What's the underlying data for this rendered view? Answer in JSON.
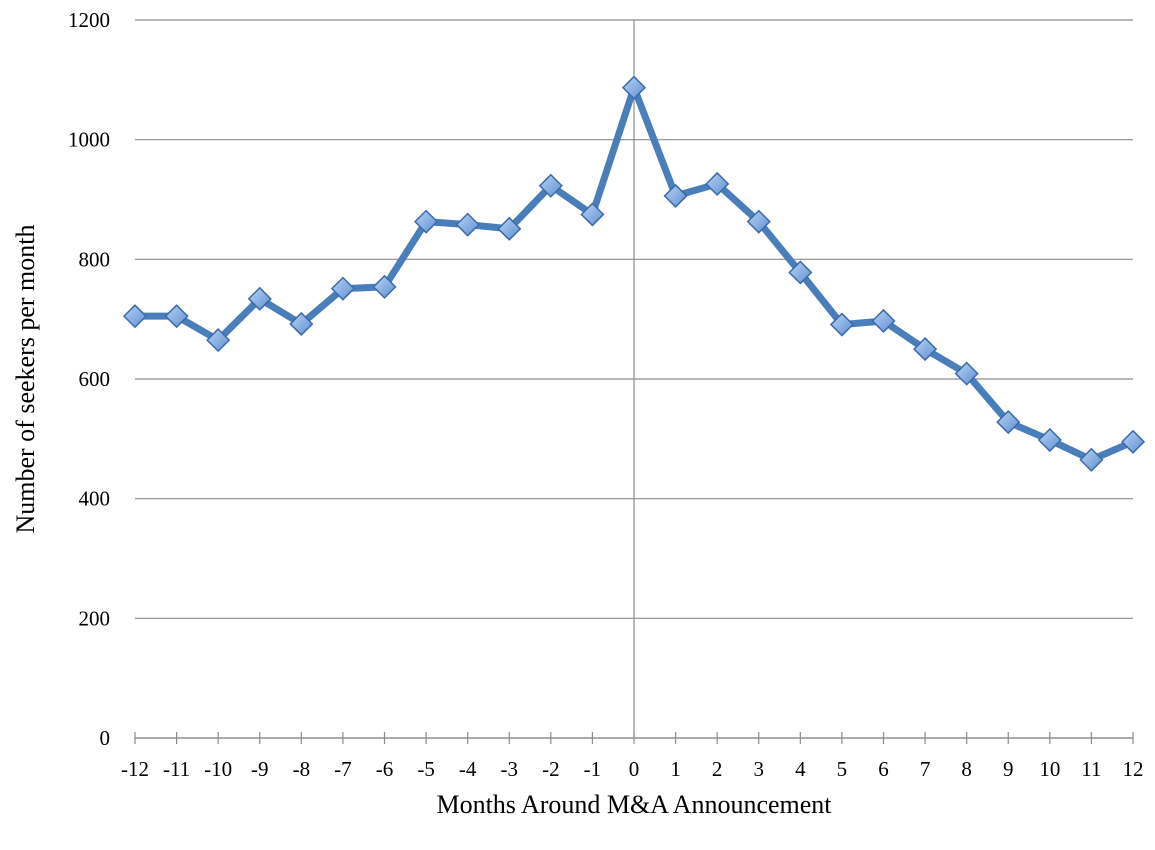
{
  "chart_data": {
    "type": "line",
    "xlabel": "Months Around M&A Announcement",
    "ylabel": "Number of seekers per month",
    "x": [
      -12,
      -11,
      -10,
      -9,
      -8,
      -7,
      -6,
      -5,
      -4,
      -3,
      -2,
      -1,
      0,
      1,
      2,
      3,
      4,
      5,
      6,
      7,
      8,
      9,
      10,
      11,
      12
    ],
    "values": [
      705,
      705,
      665,
      734,
      692,
      751,
      754,
      863,
      858,
      851,
      923,
      875,
      1087,
      906,
      926,
      863,
      778,
      691,
      697,
      650,
      609,
      528,
      498,
      465,
      495
    ],
    "color": "#4a7ebb",
    "xlim": [
      -12,
      12
    ],
    "xticks": [
      -12,
      -11,
      -10,
      -9,
      -8,
      -7,
      -6,
      -5,
      -4,
      -3,
      -2,
      -1,
      0,
      1,
      2,
      3,
      4,
      5,
      6,
      7,
      8,
      9,
      10,
      11,
      12
    ],
    "ylim": [
      0,
      1200
    ],
    "yticks": [
      0,
      200,
      400,
      600,
      800,
      1000,
      1200
    ],
    "grid": true
  }
}
